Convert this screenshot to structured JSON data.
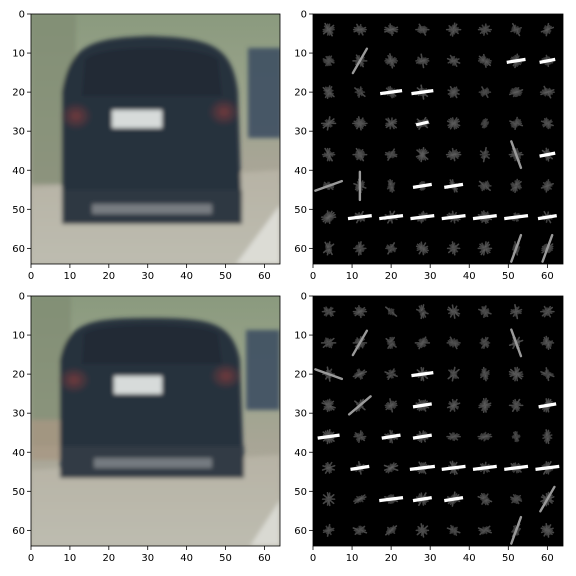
{
  "figure": {
    "panels": [
      {
        "kind": "car-photo"
      },
      {
        "kind": "hog-visualization"
      },
      {
        "kind": "car-photo-shifted"
      },
      {
        "kind": "hog-visualization"
      }
    ],
    "x_ticks": [
      "0",
      "10",
      "20",
      "30",
      "40",
      "50",
      "60"
    ],
    "y_ticks": [
      "0",
      "10",
      "20",
      "30",
      "40",
      "50",
      "60"
    ],
    "axis_range": [
      0,
      64
    ],
    "colors": {
      "car_body": "#2a3540",
      "plate": "#dfe3e2",
      "road": "#b9b7aa",
      "hog_bright": "#ffffff",
      "hog_bg": "#000000"
    }
  }
}
